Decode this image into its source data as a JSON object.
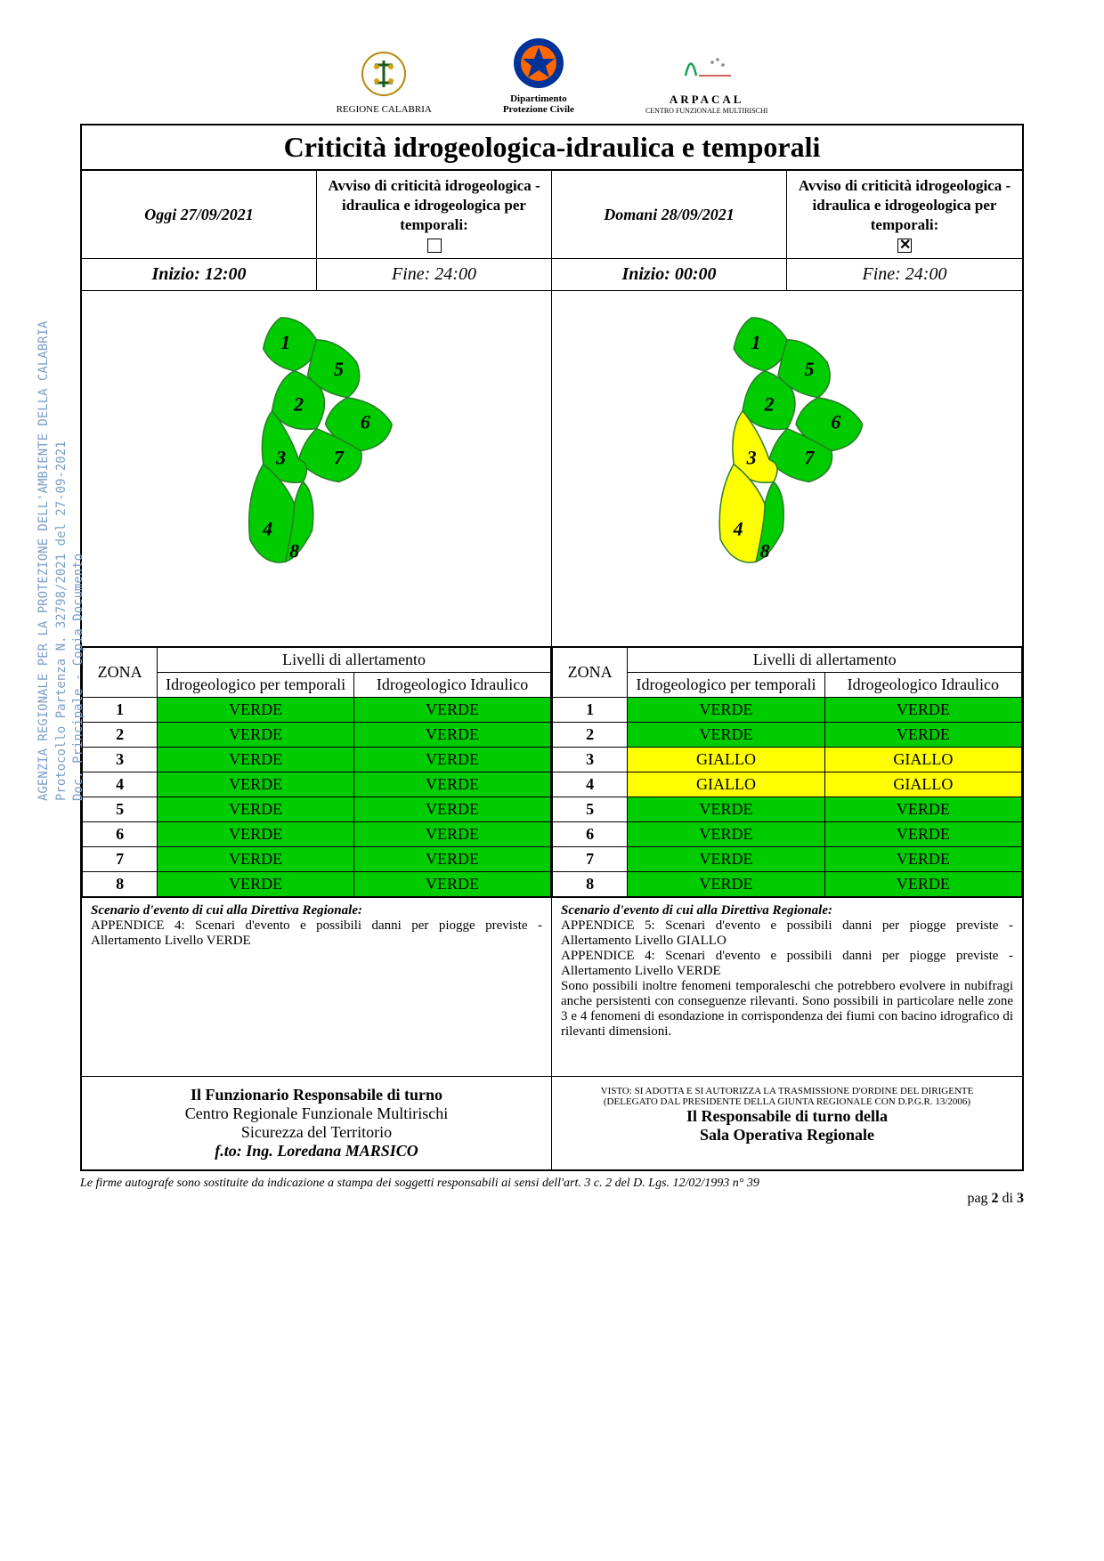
{
  "side_text": "AGENZIA REGIONALE PER LA PROTEZIONE DELL'AMBIENTE DELLA CALABRIA\nProtocollo Partenza N. 32798/2021 del 27-09-2021\nDoc. Principale - Copia Documento",
  "logos": {
    "l1": "REGIONE CALABRIA",
    "l2a": "Dipartimento",
    "l2b": "Protezione Civile",
    "l3a": "ARPACAL",
    "l3b": "CENTRO FUNZIONALE MULTIRISCHI"
  },
  "title": "Criticità idrogeologica-idraulica e temporali",
  "today": {
    "label": "Oggi 27/09/2021",
    "avviso": "Avviso di criticità idrogeologica - idraulica e idrogeologica per temporali:",
    "checked": false,
    "inizio": "Inizio:  12:00",
    "fine": "Fine:  24:00"
  },
  "tomorrow": {
    "label": "Domani 28/09/2021",
    "avviso": "Avviso di criticità idrogeologica - idraulica e idrogeologica per temporali:",
    "checked": true,
    "inizio": "Inizio:  00:00",
    "fine": "Fine:  24:00"
  },
  "map": {
    "zone_labels": [
      "1",
      "2",
      "3",
      "4",
      "5",
      "6",
      "7",
      "8"
    ],
    "colors": {
      "verde": "#00cc00",
      "giallo": "#ffff00",
      "border": "#2a7a2a"
    },
    "today_colors": [
      "#00cc00",
      "#00cc00",
      "#00cc00",
      "#00cc00",
      "#00cc00",
      "#00cc00",
      "#00cc00",
      "#00cc00"
    ],
    "tomorrow_colors": [
      "#00cc00",
      "#00cc00",
      "#ffff00",
      "#ffff00",
      "#00cc00",
      "#00cc00",
      "#00cc00",
      "#00cc00"
    ]
  },
  "table": {
    "headers": {
      "zona": "ZONA",
      "livelli": "Livelli di allertamento",
      "col1": "Idrogeologico per temporali",
      "col2": "Idrogeologico Idraulico"
    },
    "levels": {
      "VERDE": "#00cc00",
      "GIALLO": "#ffff00"
    },
    "today": [
      {
        "z": "1",
        "a": "VERDE",
        "b": "VERDE"
      },
      {
        "z": "2",
        "a": "VERDE",
        "b": "VERDE"
      },
      {
        "z": "3",
        "a": "VERDE",
        "b": "VERDE"
      },
      {
        "z": "4",
        "a": "VERDE",
        "b": "VERDE"
      },
      {
        "z": "5",
        "a": "VERDE",
        "b": "VERDE"
      },
      {
        "z": "6",
        "a": "VERDE",
        "b": "VERDE"
      },
      {
        "z": "7",
        "a": "VERDE",
        "b": "VERDE"
      },
      {
        "z": "8",
        "a": "VERDE",
        "b": "VERDE"
      }
    ],
    "tomorrow": [
      {
        "z": "1",
        "a": "VERDE",
        "b": "VERDE"
      },
      {
        "z": "2",
        "a": "VERDE",
        "b": "VERDE"
      },
      {
        "z": "3",
        "a": "GIALLO",
        "b": "GIALLO"
      },
      {
        "z": "4",
        "a": "GIALLO",
        "b": "GIALLO"
      },
      {
        "z": "5",
        "a": "VERDE",
        "b": "VERDE"
      },
      {
        "z": "6",
        "a": "VERDE",
        "b": "VERDE"
      },
      {
        "z": "7",
        "a": "VERDE",
        "b": "VERDE"
      },
      {
        "z": "8",
        "a": "VERDE",
        "b": "VERDE"
      }
    ]
  },
  "scenario": {
    "title": "Scenario d'evento di cui alla Direttiva Regionale:",
    "today": "APPENDICE 4: Scenari d'evento e possibili danni per piogge previste - Allertamento Livello VERDE",
    "tomorrow": "APPENDICE 5: Scenari d'evento e possibili danni per piogge previste - Allertamento Livello GIALLO\nAPPENDICE 4: Scenari d'evento e possibili danni per piogge previste - Allertamento Livello VERDE\nSono possibili inoltre fenomeni temporaleschi che potrebbero evolvere in nubifragi anche persistenti con conseguenze rilevanti. Sono possibili in particolare nelle zone 3 e 4 fenomeni di esondazione in corrispondenza dei fiumi con bacino idrografico di rilevanti dimensioni."
  },
  "sign": {
    "left_l1": "Il Funzionario Responsabile di turno",
    "left_l2": "Centro Regionale Funzionale Multirischi",
    "left_l3": "Sicurezza del Territorio",
    "left_l4": "f.to: Ing. Loredana MARSICO",
    "right_sm1": "VISTO: SI ADOTTA E SI AUTORIZZA LA TRASMISSIONE D'ORDINE DEL DIRIGENTE",
    "right_sm2": "(DELEGATO DAL PRESIDENTE DELLA GIUNTA REGIONALE CON D.P.G.R. 13/2006)",
    "right_l1": "Il Responsabile di turno della",
    "right_l2": "Sala Operativa Regionale"
  },
  "footer": {
    "note": "Le firme autografe sono sostituite da indicazione a stampa dei soggetti responsabili ai sensi dell'art. 3 c. 2 del D. Lgs. 12/02/1993 n° 39",
    "page_prefix": "pag ",
    "page_cur": "2",
    "page_sep": " di ",
    "page_tot": "3"
  }
}
